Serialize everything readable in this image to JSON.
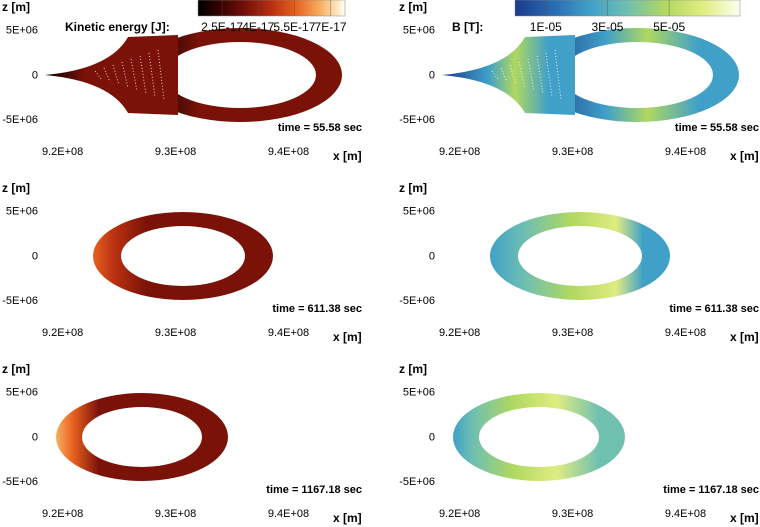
{
  "chart_data": [
    {
      "type": "field",
      "ylabel": "z [m]",
      "xlabel": "x [m]",
      "annotation": "time = 55.58 sec",
      "xlim": [
        918000000,
        945000000
      ],
      "ylim": [
        -7200000,
        6200000
      ],
      "xticks": [
        {
          "value": 920000000,
          "label": "9.2E+08"
        },
        {
          "value": 930000000,
          "label": "9.3E+08"
        },
        {
          "value": 940000000,
          "label": "9.4E+08"
        }
      ],
      "yticks": [
        {
          "value": 5000000,
          "label": "5E+06"
        },
        0,
        {
          "value": -5000000,
          "label": "-5E+06"
        }
      ],
      "colormap": [
        "#000000",
        "#3a0402",
        "#7a1208",
        "#b83010",
        "#e86020",
        "#f8b060",
        "#fffff0"
      ],
      "colorbar": {
        "label": "Kinetic energy [J]:",
        "clim": [
          1.5e-17,
          7.6e-17
        ],
        "ticks": [
          {
            "value": 2.5e-17,
            "label": "2.5E-17"
          },
          {
            "value": 4e-17,
            "label": "4E-17"
          },
          {
            "value": 5.5e-17,
            "label": "5.5E-17"
          },
          {
            "value": 7e-17,
            "label": "7E-17"
          }
        ]
      }
    },
    {
      "type": "field",
      "ylabel": "z [m]",
      "xlabel": "x [m]",
      "annotation": "time = 55.58 sec",
      "xlim": [
        918000000,
        945000000
      ],
      "ylim": [
        -7200000,
        6200000
      ],
      "xticks": [
        {
          "value": 920000000,
          "label": "9.2E+08"
        },
        {
          "value": 930000000,
          "label": "9.3E+08"
        },
        {
          "value": 940000000,
          "label": "9.4E+08"
        }
      ],
      "yticks": [
        {
          "value": 5000000,
          "label": "5E+06"
        },
        0,
        {
          "value": -5000000,
          "label": "-5E+06"
        }
      ],
      "colormap": [
        "#1a3a8c",
        "#2a6ab0",
        "#40a0c8",
        "#70c0b0",
        "#b0d860",
        "#e0ec80",
        "#fafff0"
      ],
      "colorbar": {
        "label": "B [T]:",
        "clim": [
          0,
          7.3e-05
        ],
        "ticks": [
          {
            "value": 1e-05,
            "label": "1E-05"
          },
          {
            "value": 3e-05,
            "label": "3E-05"
          },
          {
            "value": 5e-05,
            "label": "5E-05"
          }
        ]
      }
    },
    {
      "type": "field",
      "ylabel": "z [m]",
      "xlabel": "x [m]",
      "annotation": "time = 611.38 sec",
      "xlim": [
        918000000,
        945000000
      ],
      "ylim": [
        -7200000,
        6200000
      ],
      "xticks": [
        {
          "value": 920000000,
          "label": "9.2E+08"
        },
        {
          "value": 930000000,
          "label": "9.3E+08"
        },
        {
          "value": 940000000,
          "label": "9.4E+08"
        }
      ],
      "yticks": [
        {
          "value": 5000000,
          "label": "5E+06"
        },
        0,
        {
          "value": -5000000,
          "label": "-5E+06"
        }
      ],
      "colormap": [
        "#000000",
        "#3a0402",
        "#7a1208",
        "#b83010",
        "#e86020",
        "#f8b060",
        "#fffff0"
      ]
    },
    {
      "type": "field",
      "ylabel": "z [m]",
      "xlabel": "x [m]",
      "annotation": "time = 611.38 sec",
      "xlim": [
        918000000,
        945000000
      ],
      "ylim": [
        -7200000,
        6200000
      ],
      "xticks": [
        {
          "value": 920000000,
          "label": "9.2E+08"
        },
        {
          "value": 930000000,
          "label": "9.3E+08"
        },
        {
          "value": 940000000,
          "label": "9.4E+08"
        }
      ],
      "yticks": [
        {
          "value": 5000000,
          "label": "5E+06"
        },
        0,
        {
          "value": -5000000,
          "label": "-5E+06"
        }
      ],
      "colormap": [
        "#1a3a8c",
        "#2a6ab0",
        "#40a0c8",
        "#70c0b0",
        "#b0d860",
        "#e0ec80",
        "#fafff0"
      ]
    },
    {
      "type": "field",
      "ylabel": "z [m]",
      "xlabel": "x [m]",
      "annotation": "time = 1167.18 sec",
      "xlim": [
        918000000,
        945000000
      ],
      "ylim": [
        -7200000,
        6200000
      ],
      "xticks": [
        {
          "value": 920000000,
          "label": "9.2E+08"
        },
        {
          "value": 930000000,
          "label": "9.3E+08"
        },
        {
          "value": 940000000,
          "label": "9.4E+08"
        }
      ],
      "yticks": [
        {
          "value": 5000000,
          "label": "5E+06"
        },
        0,
        {
          "value": -5000000,
          "label": "-5E+06"
        }
      ],
      "colormap": [
        "#000000",
        "#3a0402",
        "#7a1208",
        "#b83010",
        "#e86020",
        "#f8b060",
        "#fffff0"
      ]
    },
    {
      "type": "field",
      "ylabel": "z [m]",
      "xlabel": "x [m]",
      "annotation": "time = 1167.18 sec",
      "xlim": [
        918000000,
        945000000
      ],
      "ylim": [
        -7200000,
        6200000
      ],
      "xticks": [
        {
          "value": 920000000,
          "label": "9.2E+08"
        },
        {
          "value": 930000000,
          "label": "9.3E+08"
        },
        {
          "value": 940000000,
          "label": "9.4E+08"
        }
      ],
      "yticks": [
        {
          "value": 5000000,
          "label": "5E+06"
        },
        0,
        {
          "value": -5000000,
          "label": "-5E+06"
        }
      ],
      "colormap": [
        "#1a3a8c",
        "#2a6ab0",
        "#40a0c8",
        "#70c0b0",
        "#b0d860",
        "#e0ec80",
        "#fafff0"
      ]
    }
  ]
}
